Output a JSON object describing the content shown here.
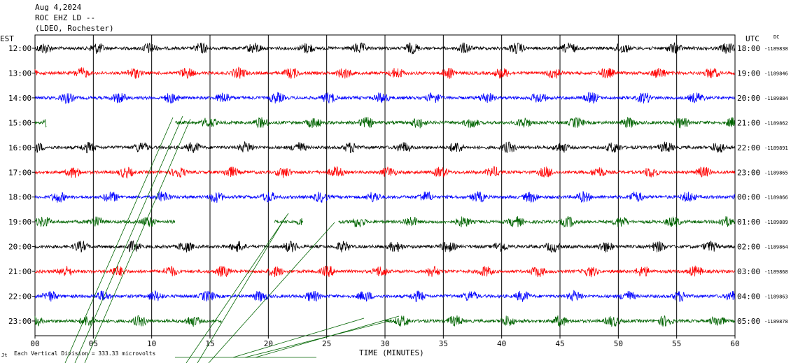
{
  "header": {
    "date": "Aug 4,2024",
    "station": "ROC EHZ LD --",
    "network": "(LDEO, Rochester)"
  },
  "chart_data": {
    "type": "line",
    "left_axis_title": "EST",
    "right_axis_title": "UTC",
    "dc_label": "DC",
    "xlabel": "TIME (MINUTES)",
    "xlim": [
      0,
      60
    ],
    "x_ticks": [
      "00",
      "05",
      "10",
      "15",
      "20",
      "25",
      "30",
      "35",
      "40",
      "45",
      "50",
      "55",
      "60"
    ],
    "scale_note": "Each Vertical Division =  333.33 microvolts",
    "trace_colors": [
      "#000000",
      "#ff0000",
      "#0000ff",
      "#006400"
    ],
    "rows": [
      {
        "est": "12:00",
        "utc": "18:00",
        "dc": "-1189838",
        "start_min": 0,
        "end_min": 60
      },
      {
        "est": "13:00",
        "utc": "19:00",
        "dc": "-1189846",
        "start_min": 0,
        "end_min": 60
      },
      {
        "est": "14:00",
        "utc": "20:00",
        "dc": "-1189884",
        "start_min": 0,
        "end_min": 60
      },
      {
        "est": "15:00",
        "utc": "21:00",
        "dc": "-1189862",
        "start_min": 0,
        "end_min": 60,
        "gap": [
          1,
          12
        ]
      },
      {
        "est": "16:00",
        "utc": "22:00",
        "dc": "-1189891",
        "start_min": 0,
        "end_min": 60
      },
      {
        "est": "17:00",
        "utc": "23:00",
        "dc": "-1189865",
        "start_min": 0,
        "end_min": 60
      },
      {
        "est": "18:00",
        "utc": "00:00",
        "dc": "-1189866",
        "start_min": 0,
        "end_min": 60
      },
      {
        "est": "19:00",
        "utc": "01:00",
        "dc": "-1189889",
        "start_min": 0,
        "end_min": 60,
        "gaps": [
          [
            12,
            20.5
          ],
          [
            23,
            26
          ]
        ]
      },
      {
        "est": "20:00",
        "utc": "02:00",
        "dc": "-1189864",
        "start_min": 0,
        "end_min": 60
      },
      {
        "est": "21:00",
        "utc": "03:00",
        "dc": "-1189868",
        "start_min": 0,
        "end_min": 60
      },
      {
        "est": "22:00",
        "utc": "04:00",
        "dc": "-1189863",
        "start_min": 0,
        "end_min": 60
      },
      {
        "est": "23:00",
        "utc": "05:00",
        "dc": "-1189878",
        "start_min": 0,
        "end_min": 60,
        "gap": [
          16,
          30
        ]
      }
    ]
  }
}
